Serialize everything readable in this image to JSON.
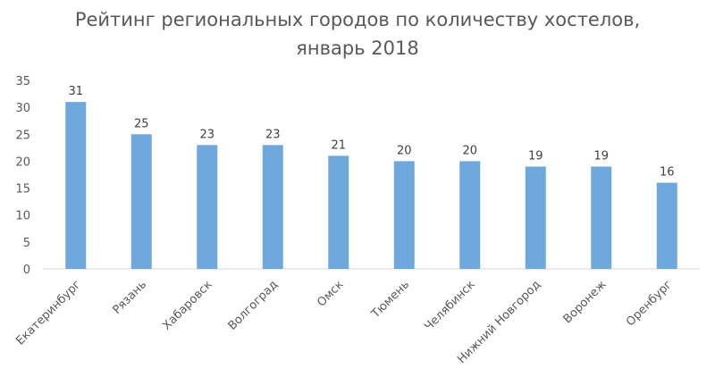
{
  "chart_data": {
    "type": "bar",
    "title_line1": "Рейтинг региональных городов по количеству хостелов,",
    "title_line2": "январь 2018",
    "categories": [
      "Екатеринбург",
      "Рязань",
      "Хабаровск",
      "Волгоград",
      "Омск",
      "Тюмень",
      "Челябинск",
      "Нижний Новгород",
      "Воронеж",
      "Оренбург"
    ],
    "values": [
      31,
      25,
      23,
      23,
      21,
      20,
      20,
      19,
      19,
      16
    ],
    "ylim": [
      0,
      35
    ],
    "yticks": [
      0,
      5,
      10,
      15,
      20,
      25,
      30,
      35
    ],
    "grid": false,
    "bar_color": "#6fa8dc",
    "axis_color": "#d9d9d9",
    "data_labels": true
  }
}
